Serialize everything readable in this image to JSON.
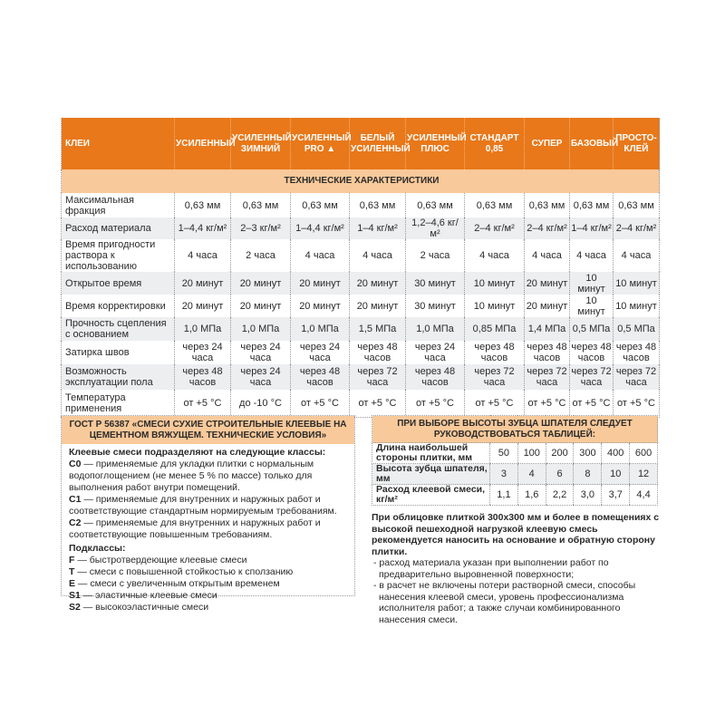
{
  "main_table": {
    "columns": [
      "КЛЕИ",
      "УСИЛЕННЫЙ",
      "УСИЛЕННЫЙ ЗИМНИЙ",
      "УСИЛЕННЫЙ PRO ▲",
      "БЕЛЫЙ УСИЛЕННЫЙ",
      "УСИЛЕННЫЙ ПЛЮС",
      "СТАНДАРТ 0,85",
      "СУПЕР",
      "БАЗОВЫЙ",
      "ПРОСТО-КЛЕЙ"
    ],
    "section": "ТЕХНИЧЕСКИЕ ХАРАКТЕРИСТИКИ",
    "rows": [
      {
        "label": "Максимальная фракция",
        "values": [
          "0,63 мм",
          "0,63 мм",
          "0,63 мм",
          "0,63 мм",
          "0,63 мм",
          "0,63 мм",
          "0,63 мм",
          "0,63 мм",
          "0,63 мм"
        ]
      },
      {
        "label": "Расход материала",
        "values": [
          "1–4,4 кг/м²",
          "2–3 кг/м²",
          "1–4,4 кг/м²",
          "1–4 кг/м²",
          "1,2–4,6 кг/м²",
          "2–4 кг/м²",
          "2–4 кг/м²",
          "1–4 кг/м²",
          "2–4 кг/м²"
        ]
      },
      {
        "label": "Время пригодности рас­твора к использованию",
        "values": [
          "4 часа",
          "2 часа",
          "4 часа",
          "4 часа",
          "2 часа",
          "4 часа",
          "4 часа",
          "4 часа",
          "4 часа"
        ]
      },
      {
        "label": "Открытое время",
        "values": [
          "20 минут",
          "20 минут",
          "20 минут",
          "20 минут",
          "30 минут",
          "10 минут",
          "20 минут",
          "10 минут",
          "10 минут"
        ]
      },
      {
        "label": "Время корректировки",
        "values": [
          "20 минут",
          "20 минут",
          "20 минут",
          "20 минут",
          "30 минут",
          "10 минут",
          "20 минут",
          "10 минут",
          "10 минут"
        ]
      },
      {
        "label": "Прочность сцепления с основанием",
        "values": [
          "1,0 МПа",
          "1,0 МПа",
          "1,0 МПа",
          "1,5 МПа",
          "1,0 МПа",
          "0,85 МПа",
          "1,4 МПа",
          "0,5 МПа",
          "0,5 МПа"
        ]
      },
      {
        "label": "Затирка швов",
        "values": [
          "через 24 часа",
          "через 24 часа",
          "через 24 часа",
          "через 48 часов",
          "через 24 часа",
          "через 48 часов",
          "через 48 часов",
          "через 48 часов",
          "через 48 часов"
        ]
      },
      {
        "label": "Возможность эксплуатации пола",
        "values": [
          "через 48 часов",
          "через 24 часа",
          "через 48 часов",
          "через 72 часа",
          "через 48 часов",
          "через 72 часа",
          "через 72 часа",
          "через 72 часа",
          "через 72 часа"
        ]
      },
      {
        "label": "Температура применения",
        "values": [
          "от +5 °С",
          "до -10 °С",
          "от +5 °С",
          "от +5 °С",
          "от +5 °С",
          "от +5 °С",
          "от +5 °С",
          "от +5 °С",
          "от +5 °С"
        ]
      }
    ]
  },
  "gost": {
    "title": "ГОСТ Р 56387 «СМЕСИ СУХИЕ СТРОИТЕЛЬНЫЕ КЛЕЕВЫЕ НА ЦЕМЕНТНОМ ВЯЖУЩЕМ. ТЕХНИЧЕСКИЕ УСЛОВИЯ»",
    "classes_heading": "Клеевые смеси подразделяют на следующие классы:",
    "classes": [
      {
        "code": "С0",
        "text": " — применяемые для укладки плитки с нормальным водопоглощением (не менее 5 % по массе) только для выполнения работ внутри помещений."
      },
      {
        "code": "С1",
        "text": " — применяемые для внутренних и наружных работ и соответствующие стандартным нормируемым требованиям."
      },
      {
        "code": "С2",
        "text": " — применяемые для внутренних и наружных работ и соответствующие повышенным требованиям."
      }
    ],
    "subclasses_heading": "Подклассы:",
    "subclasses": [
      {
        "code": "F",
        "text": " — быстротвердеющие клеевые смеси"
      },
      {
        "code": "T",
        "text": " — смеси с повышенной стойкостью к сползанию"
      },
      {
        "code": "E",
        "text": " — смеси с увеличенным открытым временем"
      },
      {
        "code": "S1",
        "text": " — эластичные клеевые смеси"
      },
      {
        "code": "S2",
        "text": " — высокоэластичные смеси"
      }
    ]
  },
  "spatula": {
    "title": "ПРИ ВЫБОРЕ ВЫСОТЫ ЗУБЦА ШПАТЕЛЯ СЛЕДУЕТ РУКОВОДСТВОВАТЬСЯ ТАБЛИЦЕЙ:",
    "rows": [
      {
        "label": "Длина наибольшей стороны плитки, мм",
        "values": [
          "50",
          "100",
          "200",
          "300",
          "400",
          "600"
        ]
      },
      {
        "label": "Высота зубца шпателя, мм",
        "values": [
          "3",
          "4",
          "6",
          "8",
          "10",
          "12"
        ]
      },
      {
        "label": "Расход клеевой смеси, кг/м²",
        "values": [
          "1,1",
          "1,6",
          "2,2",
          "3,0",
          "3,7",
          "4,4"
        ]
      }
    ]
  },
  "note": {
    "bold": "При облицовке плиткой 300х300 мм и более в помещениях с высокой пешеходной нагрузкой клеевую смесь рекомендуется наносить на основание и обратную сторону плитки.",
    "items": [
      "- расход материала указан при выполнении работ по предварительно выровненной поверхности;",
      "- в расчет не включены потери растворной смеси, способы нанесения клеевой смеси, уровень профессионализма исполнителя работ; а также случаи комбинированного нанесения смеси."
    ]
  },
  "colors": {
    "header": "#e8781a",
    "section": "#f8c99a",
    "stripe": "#eceef0"
  }
}
